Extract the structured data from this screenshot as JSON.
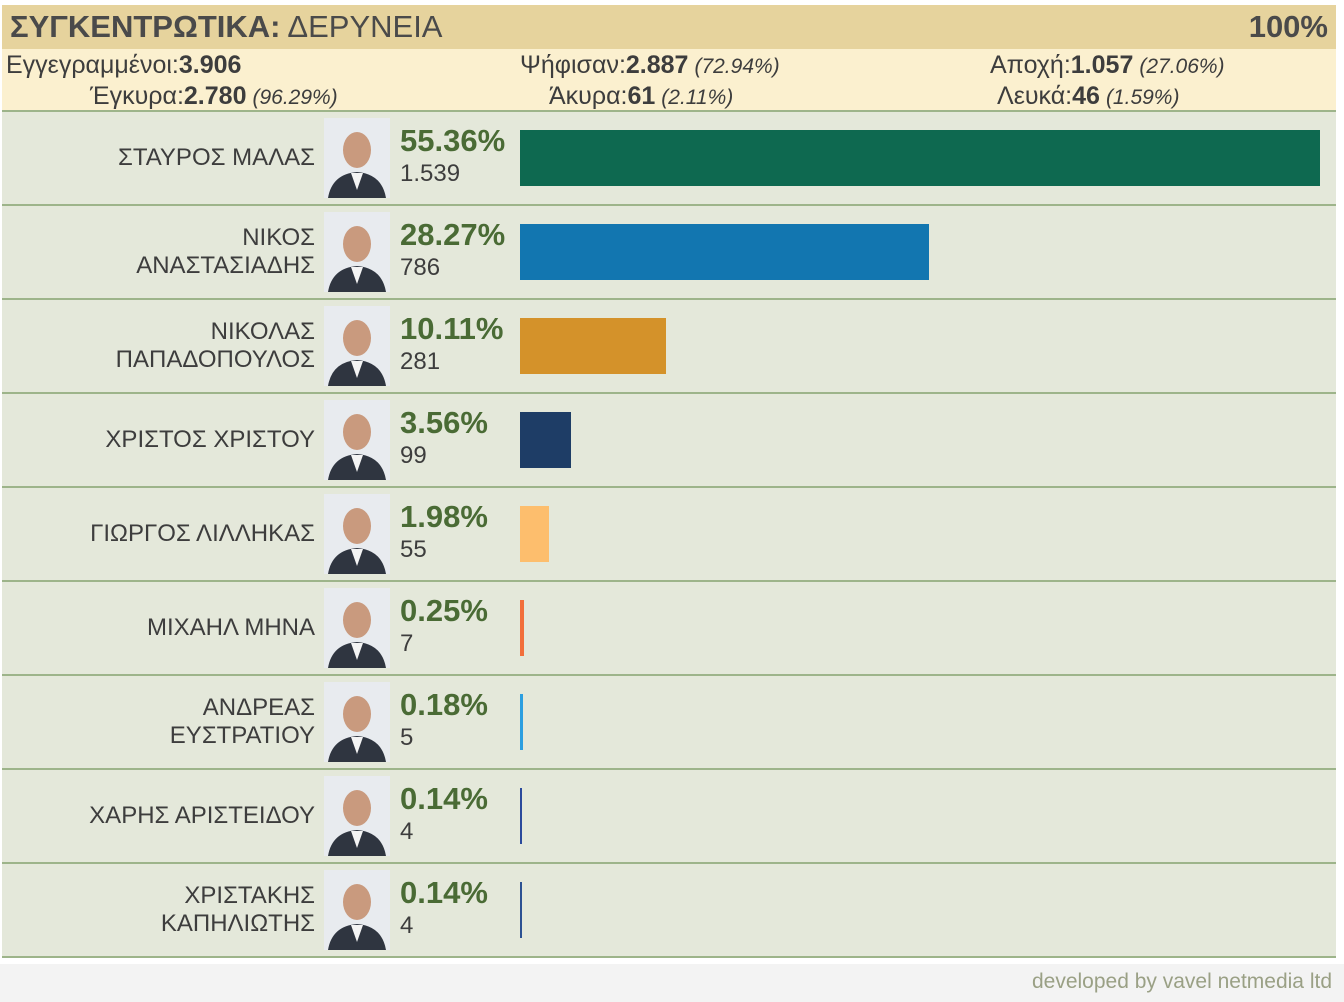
{
  "header": {
    "title_bold": "ΣΥΓΚΕΝΤΡΩΤΙΚΑ:",
    "title_rest": " ΔΕΡΥΝΕΙΑ",
    "counted": "100%"
  },
  "summary": {
    "registered": {
      "label": "Εγγεγραμμένοι:",
      "value": "3.906"
    },
    "voted": {
      "label": "Ψήφισαν:",
      "value": "2.887",
      "pct": "(72.94%)"
    },
    "abstention": {
      "label": "Αποχή:",
      "value": "1.057",
      "pct": "(27.06%)"
    },
    "valid": {
      "label": "Έγκυρα:",
      "value": "2.780",
      "pct": "(96.29%)"
    },
    "invalid": {
      "label": "Άκυρα:",
      "value": "61",
      "pct": "(2.11%)"
    },
    "blank": {
      "label": "Λευκά:",
      "value": "46",
      "pct": "(1.59%)"
    }
  },
  "chart_data": {
    "type": "bar",
    "orientation": "horizontal",
    "categories": [
      "ΣΤΑΥΡΟΣ ΜΑΛΑΣ",
      "ΝΙΚΟΣ ΑΝΑΣΤΑΣΙΑΔΗΣ",
      "ΝΙΚΟΛΑΣ ΠΑΠΑΔΟΠΟΥΛΟΣ",
      "ΧΡΙΣΤΟΣ ΧΡΙΣΤΟΥ",
      "ΓΙΩΡΓΟΣ ΛΙΛΛΗΚΑΣ",
      "ΜΙΧΑΗΛ ΜΗΝΑ",
      "ΑΝΔΡΕΑΣ ΕΥΣΤΡΑΤΙΟΥ",
      "ΧΑΡΗΣ ΑΡΙΣΤΕΙΔΟΥ",
      "ΧΡΙΣΤΑΚΗΣ ΚΑΠΗΛΙΩΤΗΣ"
    ],
    "values": [
      55.36,
      28.27,
      10.11,
      3.56,
      1.98,
      0.25,
      0.18,
      0.14,
      0.14
    ],
    "pct_labels": [
      "55.36%",
      "28.27%",
      "10.11%",
      "3.56%",
      "1.98%",
      "0.25%",
      "0.18%",
      "0.14%",
      "0.14%"
    ],
    "votes": [
      "1.539",
      "786",
      "281",
      "99",
      "55",
      "7",
      "5",
      "4",
      "4"
    ],
    "colors": [
      "#0e6950",
      "#1276b0",
      "#d4922a",
      "#1e3d66",
      "#fdbe6d",
      "#f26f3b",
      "#2c9fe0",
      "#2b4a9c",
      "#2c5192"
    ],
    "xlim": [
      0,
      55.36
    ]
  },
  "footer": {
    "credit": "developed by vavel netmedia ltd"
  }
}
